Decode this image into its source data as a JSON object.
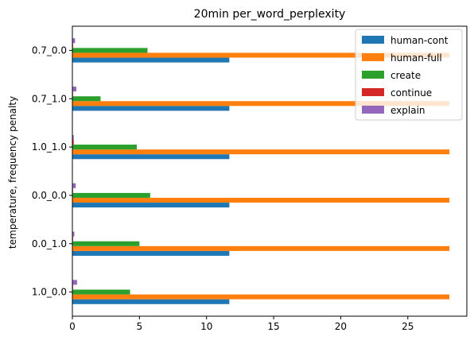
{
  "chart_data": {
    "type": "bar",
    "orientation": "horizontal",
    "title": "20min per_word_perplexity",
    "xlabel": "",
    "ylabel": "temperature, frequency penalty",
    "categories": [
      "1.0_0.0",
      "0.0_1.0",
      "0.0_0.0",
      "1.0_1.0",
      "0.7_1.0",
      "0.7_0.0"
    ],
    "xlim": [
      0,
      29.4
    ],
    "xticks": [
      0,
      5,
      10,
      15,
      20,
      25
    ],
    "grid": false,
    "legend_position": "top-right",
    "series": [
      {
        "name": "human-cont",
        "color": "#1f77b4",
        "values": [
          11.7,
          11.7,
          11.7,
          11.7,
          11.7,
          11.7
        ]
      },
      {
        "name": "human-full",
        "color": "#ff7f0e",
        "values": [
          28.1,
          28.1,
          28.1,
          28.1,
          28.1,
          28.1
        ]
      },
      {
        "name": "create",
        "color": "#2ca02c",
        "values": [
          4.3,
          5.0,
          5.8,
          4.8,
          2.1,
          5.6
        ]
      },
      {
        "name": "continue",
        "color": "#d62728",
        "values": [
          0.05,
          0.05,
          0.05,
          0.1,
          0.05,
          0.05
        ]
      },
      {
        "name": "explain",
        "color": "#9467bd",
        "values": [
          0.35,
          0.15,
          0.25,
          0.1,
          0.3,
          0.2
        ]
      }
    ]
  }
}
